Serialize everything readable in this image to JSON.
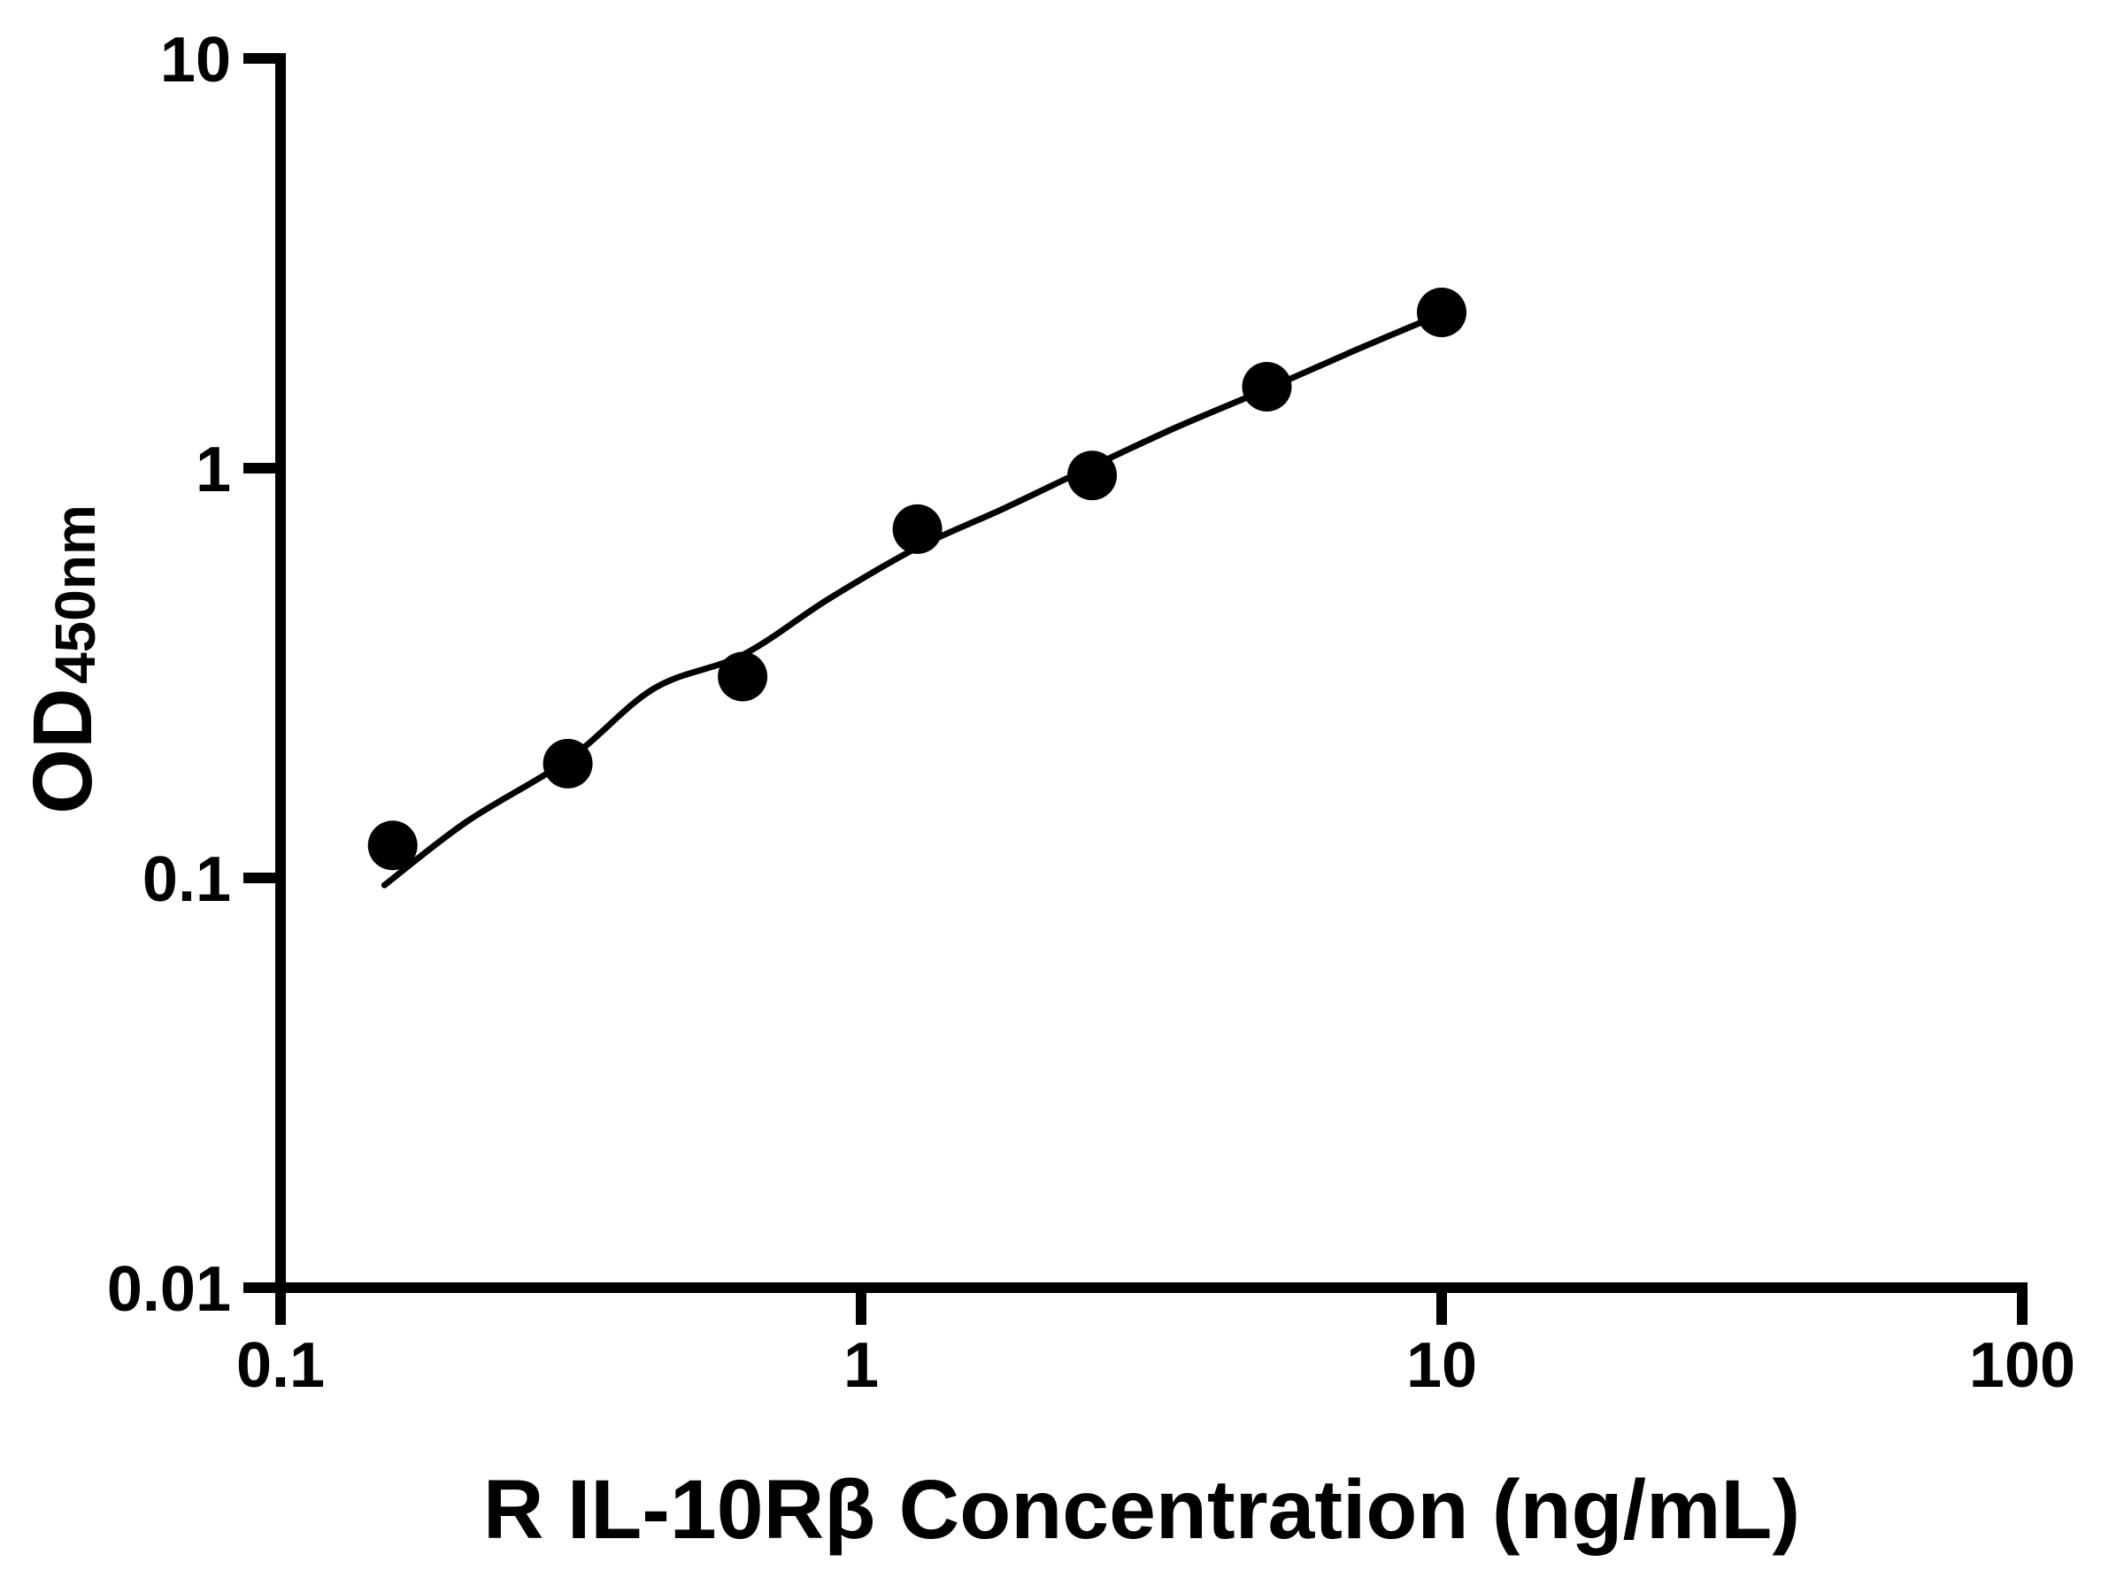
{
  "figure": {
    "background_color": "#ffffff",
    "ink_color": "#000000"
  },
  "chart_data": {
    "type": "scatter",
    "title": "",
    "xlabel": "R IL-10Rβ Concentration (ng/mL)",
    "ylabel_main": "OD",
    "ylabel_sub": "450nm",
    "x_scale": "log10",
    "y_scale": "log10",
    "xlim": [
      0.1,
      100
    ],
    "ylim": [
      0.01,
      10
    ],
    "x_ticks": [
      0.1,
      1,
      10,
      100
    ],
    "x_tick_labels": [
      "0.1",
      "1",
      "10",
      "100"
    ],
    "y_ticks": [
      0.01,
      0.1,
      1,
      10
    ],
    "y_tick_labels": [
      "0.01",
      "0.1",
      "1",
      "10"
    ],
    "grid": false,
    "legend": false,
    "marker_color": "#000000",
    "line_color": "#000000",
    "series": [
      {
        "name": "standard-points",
        "type": "scatter",
        "marker": "filled-circle",
        "x": [
          0.156,
          0.3125,
          0.625,
          1.25,
          2.5,
          5,
          10
        ],
        "y": [
          0.12,
          0.19,
          0.31,
          0.71,
          0.96,
          1.58,
          2.4
        ]
      },
      {
        "name": "fit-curve",
        "type": "line",
        "x": [
          0.151,
          0.209,
          0.314,
          0.44,
          0.625,
          0.88,
          1.25,
          1.77,
          2.5,
          3.5,
          5,
          7.1,
          10
        ],
        "y": [
          0.096,
          0.137,
          0.195,
          0.29,
          0.35,
          0.48,
          0.64,
          0.8,
          1.01,
          1.26,
          1.56,
          1.94,
          2.38
        ]
      }
    ]
  }
}
